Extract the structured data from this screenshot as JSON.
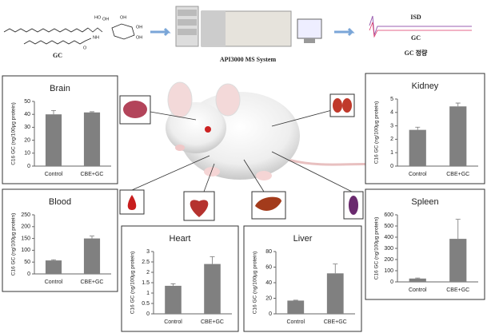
{
  "workflow": {
    "compound": "GC",
    "instrument": "API3000 MS System",
    "trace_top": "ISD",
    "trace_bottom": "GC",
    "result": "GC 정량",
    "structure_labels": [
      "HO",
      "OH",
      "NH",
      "O",
      "OH",
      "OH",
      "OH"
    ]
  },
  "chart_data": [
    {
      "type": "bar",
      "title": "Brain",
      "ylabel": "C16 GC (ng/100μg protein)",
      "categories": [
        "Control",
        "CBE+GC"
      ],
      "values": [
        40,
        41.5
      ],
      "errors": [
        3,
        0.5
      ],
      "color": "#808080",
      "ylim": [
        0,
        50
      ],
      "yticks": [
        0,
        10,
        20,
        30,
        40,
        50
      ]
    },
    {
      "type": "bar",
      "title": "Kidney",
      "ylabel": "C16 GC (ng/100μg protein)",
      "categories": [
        "Control",
        "CBE+GC"
      ],
      "values": [
        2.7,
        4.45
      ],
      "errors": [
        0.2,
        0.25
      ],
      "color": "#808080",
      "ylim": [
        0,
        5
      ],
      "yticks": [
        0,
        1,
        2,
        3,
        4,
        5
      ]
    },
    {
      "type": "bar",
      "title": "Blood",
      "ylabel": "C16 GC (ng/100μg protein)",
      "categories": [
        "Control",
        "CBE+GC"
      ],
      "values": [
        57,
        150
      ],
      "errors": [
        3,
        10
      ],
      "color": "#808080",
      "ylim": [
        0,
        250
      ],
      "yticks": [
        0,
        50,
        100,
        150,
        200,
        250
      ]
    },
    {
      "type": "bar",
      "title": "Heart",
      "ylabel": "C16 GC (ng/100μg protein)",
      "categories": [
        "Control",
        "CBE+GC"
      ],
      "values": [
        1.35,
        2.4
      ],
      "errors": [
        0.1,
        0.35
      ],
      "color": "#808080",
      "ylim": [
        0,
        3
      ],
      "yticks": [
        0,
        0.5,
        1,
        1.5,
        2,
        2.5,
        3
      ]
    },
    {
      "type": "bar",
      "title": "Liver",
      "ylabel": "C16 GC (ng/100μg protein)",
      "categories": [
        "Control",
        "CBE+GC"
      ],
      "values": [
        17,
        52
      ],
      "errors": [
        0.5,
        12
      ],
      "color": "#808080",
      "ylim": [
        0,
        80
      ],
      "yticks": [
        0,
        20,
        40,
        60,
        80
      ]
    },
    {
      "type": "bar",
      "title": "Spleen",
      "ylabel": "C16 GC (ng/100μg protein)",
      "categories": [
        "Control",
        "CBE+GC"
      ],
      "values": [
        30,
        385
      ],
      "errors": [
        5,
        175
      ],
      "color": "#808080",
      "ylim": [
        0,
        600
      ],
      "yticks": [
        0,
        100,
        200,
        300,
        400,
        500,
        600
      ]
    }
  ]
}
